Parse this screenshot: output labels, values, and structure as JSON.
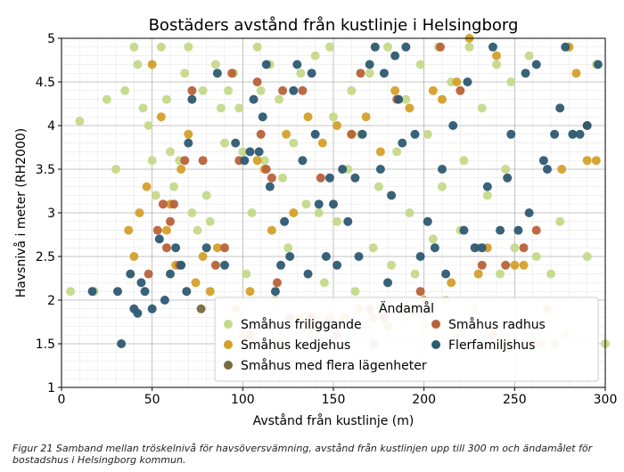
{
  "chart_data": {
    "type": "scatter",
    "title": "Bostäders avstånd från kustlinje i Helsingborg",
    "xlabel": "Avstånd från kustlinje (m)",
    "ylabel": "Havsnivå i meter (RH2000)",
    "xlim": [
      0,
      300
    ],
    "ylim": [
      1,
      5
    ],
    "xticks": [
      "0",
      "50",
      "100",
      "150",
      "200",
      "250",
      "300"
    ],
    "yticks": [
      "1",
      "1.5",
      "2",
      "2.5",
      "3",
      "3.5",
      "4",
      "4.5",
      "5"
    ],
    "xtick_values": [
      0,
      50,
      100,
      150,
      200,
      250,
      300
    ],
    "ytick_values": [
      1,
      1.5,
      2,
      2.5,
      3,
      3.5,
      4,
      4.5,
      5
    ],
    "grid": true,
    "legend_title": "Ändamål",
    "legend_position": "bottom-right",
    "series": [
      {
        "name": "Småhus friliggande",
        "color": "#c5d98a",
        "points": [
          [
            5,
            2.1
          ],
          [
            10,
            4.05
          ],
          [
            18,
            2.1
          ],
          [
            25,
            4.3
          ],
          [
            30,
            3.5
          ],
          [
            35,
            4.4
          ],
          [
            40,
            4.9
          ],
          [
            42,
            4.7
          ],
          [
            45,
            4.2
          ],
          [
            48,
            4.0
          ],
          [
            50,
            3.6
          ],
          [
            52,
            3.2
          ],
          [
            55,
            4.9
          ],
          [
            58,
            4.3
          ],
          [
            60,
            3.7
          ],
          [
            62,
            3.3
          ],
          [
            65,
            3.6
          ],
          [
            68,
            4.6
          ],
          [
            70,
            4.9
          ],
          [
            72,
            3.0
          ],
          [
            75,
            2.8
          ],
          [
            78,
            4.4
          ],
          [
            80,
            3.2
          ],
          [
            82,
            2.9
          ],
          [
            85,
            4.7
          ],
          [
            88,
            4.2
          ],
          [
            90,
            3.8
          ],
          [
            92,
            4.4
          ],
          [
            95,
            4.6
          ],
          [
            98,
            4.2
          ],
          [
            100,
            3.7
          ],
          [
            102,
            2.3
          ],
          [
            105,
            3.0
          ],
          [
            108,
            4.9
          ],
          [
            110,
            4.4
          ],
          [
            112,
            3.6
          ],
          [
            115,
            4.7
          ],
          [
            118,
            2.0
          ],
          [
            120,
            4.3
          ],
          [
            122,
            3.4
          ],
          [
            125,
            2.6
          ],
          [
            128,
            3.8
          ],
          [
            130,
            1.8
          ],
          [
            132,
            4.6
          ],
          [
            135,
            3.1
          ],
          [
            138,
            1.6
          ],
          [
            140,
            4.8
          ],
          [
            142,
            3.0
          ],
          [
            145,
            2.2
          ],
          [
            148,
            4.9
          ],
          [
            150,
            4.1
          ],
          [
            152,
            2.9
          ],
          [
            155,
            1.8
          ],
          [
            158,
            3.5
          ],
          [
            160,
            4.4
          ],
          [
            162,
            2.1
          ],
          [
            165,
            3.9
          ],
          [
            168,
            1.7
          ],
          [
            170,
            4.6
          ],
          [
            172,
            2.6
          ],
          [
            175,
            3.3
          ],
          [
            178,
            1.9
          ],
          [
            180,
            4.9
          ],
          [
            182,
            2.4
          ],
          [
            185,
            3.7
          ],
          [
            188,
            1.8
          ],
          [
            190,
            4.3
          ],
          [
            192,
            3.0
          ],
          [
            195,
            2.3
          ],
          [
            198,
            4.7
          ],
          [
            200,
            1.7
          ],
          [
            202,
            3.9
          ],
          [
            205,
            2.7
          ],
          [
            208,
            4.9
          ],
          [
            210,
            3.3
          ],
          [
            212,
            2.0
          ],
          [
            215,
            4.5
          ],
          [
            218,
            1.6
          ],
          [
            220,
            2.8
          ],
          [
            222,
            3.6
          ],
          [
            225,
            4.9
          ],
          [
            228,
            1.9
          ],
          [
            230,
            2.6
          ],
          [
            232,
            4.2
          ],
          [
            235,
            3.2
          ],
          [
            238,
            1.6
          ],
          [
            240,
            4.7
          ],
          [
            242,
            2.3
          ],
          [
            245,
            3.5
          ],
          [
            248,
            4.5
          ],
          [
            250,
            2.6
          ],
          [
            255,
            1.5
          ],
          [
            258,
            4.8
          ],
          [
            262,
            2.5
          ],
          [
            265,
            1.5
          ],
          [
            270,
            2.3
          ],
          [
            275,
            2.9
          ],
          [
            278,
            1.6
          ],
          [
            282,
            3.9
          ],
          [
            290,
            2.5
          ],
          [
            295,
            4.7
          ],
          [
            300,
            1.5
          ]
        ]
      },
      {
        "name": "Småhus kedjehus",
        "color": "#d4a02a",
        "points": [
          [
            37,
            2.8
          ],
          [
            40,
            2.5
          ],
          [
            43,
            3.0
          ],
          [
            47,
            3.3
          ],
          [
            50,
            4.7
          ],
          [
            55,
            4.1
          ],
          [
            58,
            2.8
          ],
          [
            60,
            3.1
          ],
          [
            63,
            2.4
          ],
          [
            66,
            3.5
          ],
          [
            70,
            3.9
          ],
          [
            74,
            2.2
          ],
          [
            78,
            2.5
          ],
          [
            82,
            2.1
          ],
          [
            86,
            2.6
          ],
          [
            92,
            1.5
          ],
          [
            96,
            1.9
          ],
          [
            100,
            1.6
          ],
          [
            104,
            2.1
          ],
          [
            108,
            3.6
          ],
          [
            112,
            3.5
          ],
          [
            116,
            2.8
          ],
          [
            120,
            1.5
          ],
          [
            124,
            3.9
          ],
          [
            128,
            3.0
          ],
          [
            132,
            1.8
          ],
          [
            136,
            4.1
          ],
          [
            140,
            1.7
          ],
          [
            144,
            3.8
          ],
          [
            148,
            1.8
          ],
          [
            152,
            4.0
          ],
          [
            156,
            1.8
          ],
          [
            160,
            3.9
          ],
          [
            164,
            1.9
          ],
          [
            168,
            4.1
          ],
          [
            172,
            1.8
          ],
          [
            176,
            3.7
          ],
          [
            180,
            1.7
          ],
          [
            184,
            4.4
          ],
          [
            188,
            1.9
          ],
          [
            192,
            4.2
          ],
          [
            196,
            1.9
          ],
          [
            200,
            2.0
          ],
          [
            205,
            4.4
          ],
          [
            210,
            4.3
          ],
          [
            215,
            2.2
          ],
          [
            218,
            4.5
          ],
          [
            225,
            5.0
          ],
          [
            230,
            2.3
          ],
          [
            235,
            2.6
          ],
          [
            240,
            4.8
          ],
          [
            245,
            1.5
          ],
          [
            250,
            2.4
          ],
          [
            255,
            2.4
          ],
          [
            262,
            1.5
          ],
          [
            268,
            1.9
          ],
          [
            272,
            1.5
          ],
          [
            276,
            3.5
          ],
          [
            280,
            4.9
          ],
          [
            284,
            4.6
          ],
          [
            290,
            3.6
          ],
          [
            295,
            3.6
          ]
        ]
      },
      {
        "name": "Småhus med flera lägenheter",
        "color": "#7a6a3a",
        "points": [
          [
            77,
            1.9
          ]
        ]
      },
      {
        "name": "Småhus radhus",
        "color": "#b8623a",
        "points": [
          [
            48,
            2.3
          ],
          [
            53,
            2.8
          ],
          [
            56,
            3.1
          ],
          [
            58,
            2.6
          ],
          [
            60,
            2.9
          ],
          [
            62,
            3.1
          ],
          [
            65,
            2.4
          ],
          [
            68,
            3.6
          ],
          [
            72,
            4.4
          ],
          [
            78,
            3.6
          ],
          [
            85,
            2.4
          ],
          [
            90,
            2.6
          ],
          [
            94,
            4.6
          ],
          [
            98,
            3.6
          ],
          [
            104,
            1.6
          ],
          [
            108,
            4.5
          ],
          [
            110,
            3.9
          ],
          [
            113,
            3.5
          ],
          [
            116,
            3.4
          ],
          [
            119,
            2.2
          ],
          [
            122,
            4.4
          ],
          [
            126,
            1.8
          ],
          [
            133,
            4.4
          ],
          [
            138,
            1.8
          ],
          [
            143,
            3.4
          ],
          [
            152,
            1.6
          ],
          [
            160,
            3.9
          ],
          [
            165,
            4.6
          ],
          [
            170,
            1.9
          ],
          [
            172,
            1.5
          ],
          [
            178,
            1.8
          ],
          [
            185,
            4.3
          ],
          [
            198,
            2.1
          ],
          [
            209,
            4.9
          ],
          [
            220,
            4.4
          ],
          [
            232,
            2.4
          ],
          [
            238,
            1.6
          ],
          [
            245,
            2.4
          ],
          [
            255,
            2.6
          ],
          [
            262,
            2.8
          ],
          [
            290,
            4.0
          ]
        ]
      },
      {
        "name": "Flerfamiljshus",
        "color": "#2d5a72",
        "points": [
          [
            17,
            2.1
          ],
          [
            31,
            2.1
          ],
          [
            33,
            1.5
          ],
          [
            38,
            2.3
          ],
          [
            40,
            1.9
          ],
          [
            42,
            1.85
          ],
          [
            44,
            2.2
          ],
          [
            46,
            2.1
          ],
          [
            50,
            1.9
          ],
          [
            54,
            2.7
          ],
          [
            57,
            2.0
          ],
          [
            60,
            2.3
          ],
          [
            63,
            2.6
          ],
          [
            66,
            2.4
          ],
          [
            69,
            2.1
          ],
          [
            70,
            3.8
          ],
          [
            72,
            4.3
          ],
          [
            80,
            2.6
          ],
          [
            86,
            4.6
          ],
          [
            90,
            2.4
          ],
          [
            96,
            3.8
          ],
          [
            101,
            3.6
          ],
          [
            104,
            3.7
          ],
          [
            106,
            4.3
          ],
          [
            109,
            3.7
          ],
          [
            111,
            4.1
          ],
          [
            113,
            4.7
          ],
          [
            115,
            3.3
          ],
          [
            118,
            2.1
          ],
          [
            121,
            2.4
          ],
          [
            123,
            2.9
          ],
          [
            126,
            2.5
          ],
          [
            128,
            4.4
          ],
          [
            130,
            4.7
          ],
          [
            133,
            3.6
          ],
          [
            136,
            2.3
          ],
          [
            138,
            4.6
          ],
          [
            140,
            3.9
          ],
          [
            142,
            3.1
          ],
          [
            146,
            2.5
          ],
          [
            148,
            3.4
          ],
          [
            150,
            3.1
          ],
          [
            152,
            2.4
          ],
          [
            155,
            3.5
          ],
          [
            158,
            2.9
          ],
          [
            162,
            3.4
          ],
          [
            164,
            2.5
          ],
          [
            166,
            3.9
          ],
          [
            170,
            4.7
          ],
          [
            173,
            4.9
          ],
          [
            176,
            3.5
          ],
          [
            178,
            4.6
          ],
          [
            180,
            2.2
          ],
          [
            182,
            3.2
          ],
          [
            184,
            4.8
          ],
          [
            186,
            4.3
          ],
          [
            188,
            3.8
          ],
          [
            190,
            4.9
          ],
          [
            195,
            3.9
          ],
          [
            198,
            2.5
          ],
          [
            202,
            2.9
          ],
          [
            206,
            2.6
          ],
          [
            210,
            3.5
          ],
          [
            212,
            2.3
          ],
          [
            216,
            4.0
          ],
          [
            222,
            2.8
          ],
          [
            224,
            4.5
          ],
          [
            228,
            2.6
          ],
          [
            232,
            2.6
          ],
          [
            235,
            3.3
          ],
          [
            238,
            4.9
          ],
          [
            242,
            2.8
          ],
          [
            246,
            3.4
          ],
          [
            248,
            3.9
          ],
          [
            252,
            2.8
          ],
          [
            256,
            4.6
          ],
          [
            258,
            3.0
          ],
          [
            262,
            4.7
          ],
          [
            266,
            3.6
          ],
          [
            268,
            3.5
          ],
          [
            272,
            3.9
          ],
          [
            275,
            4.2
          ],
          [
            278,
            4.9
          ],
          [
            282,
            3.9
          ],
          [
            286,
            3.9
          ],
          [
            290,
            4.0
          ],
          [
            296,
            4.7
          ]
        ]
      }
    ]
  },
  "caption": "Figur 21 Samband mellan tröskelnivå för havsöversvämning, avstånd från kustlinjen upp till 300 m och ändamålet för bostadshus i Helsingborg kommun."
}
